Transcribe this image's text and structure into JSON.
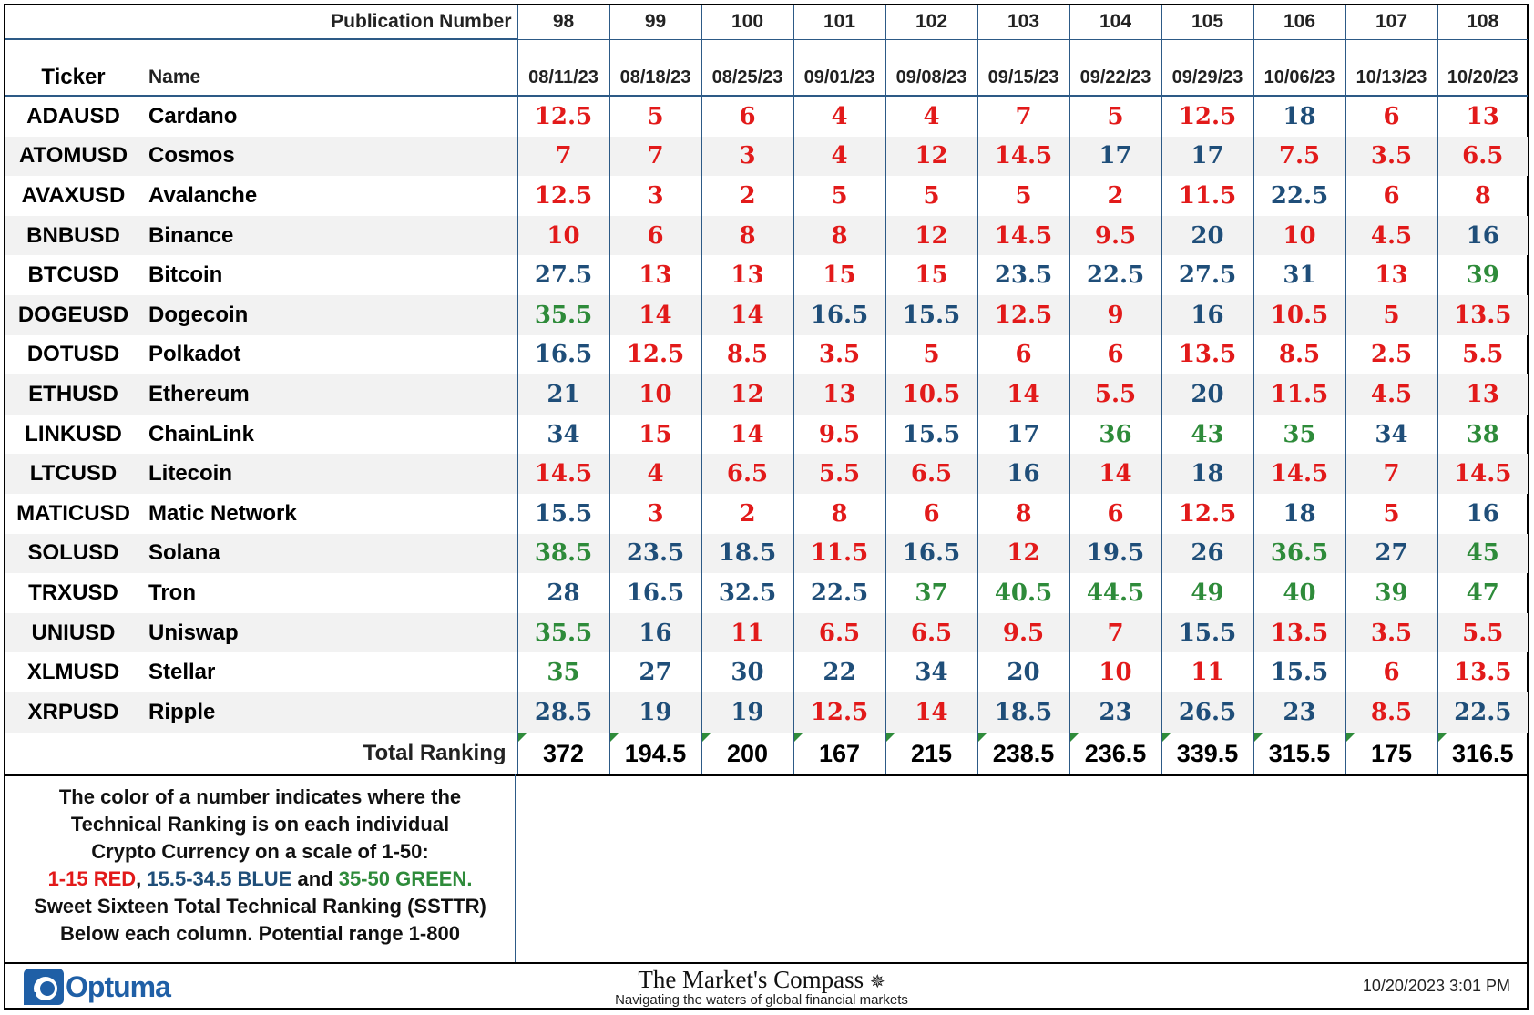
{
  "chart_data": {
    "type": "table",
    "header_label": "Publication Number",
    "column_headers": {
      "ticker": "Ticker",
      "name": "Name"
    },
    "publication_numbers": [
      "98",
      "99",
      "100",
      "101",
      "102",
      "103",
      "104",
      "105",
      "106",
      "107",
      "108"
    ],
    "dates": [
      "08/11/23",
      "08/18/23",
      "08/25/23",
      "09/01/23",
      "09/08/23",
      "09/15/23",
      "09/22/23",
      "09/29/23",
      "10/06/23",
      "10/13/23",
      "10/20/23"
    ],
    "rows": [
      {
        "ticker": "ADAUSD",
        "name": "Cardano",
        "values": [
          "12.5",
          "5",
          "6",
          "4",
          "4",
          "7",
          "5",
          "12.5",
          "18",
          "6",
          "13"
        ]
      },
      {
        "ticker": "ATOMUSD",
        "name": "Cosmos",
        "values": [
          "7",
          "7",
          "3",
          "4",
          "12",
          "14.5",
          "17",
          "17",
          "7.5",
          "3.5",
          "6.5"
        ]
      },
      {
        "ticker": "AVAXUSD",
        "name": "Avalanche",
        "values": [
          "12.5",
          "3",
          "2",
          "5",
          "5",
          "5",
          "2",
          "11.5",
          "22.5",
          "6",
          "8"
        ]
      },
      {
        "ticker": "BNBUSD",
        "name": "Binance",
        "values": [
          "10",
          "6",
          "8",
          "8",
          "12",
          "14.5",
          "9.5",
          "20",
          "10",
          "4.5",
          "16"
        ]
      },
      {
        "ticker": "BTCUSD",
        "name": "Bitcoin",
        "values": [
          "27.5",
          "13",
          "13",
          "15",
          "15",
          "23.5",
          "22.5",
          "27.5",
          "31",
          "13",
          "39"
        ]
      },
      {
        "ticker": "DOGEUSD",
        "name": "Dogecoin",
        "values": [
          "35.5",
          "14",
          "14",
          "16.5",
          "15.5",
          "12.5",
          "9",
          "16",
          "10.5",
          "5",
          "13.5"
        ]
      },
      {
        "ticker": "DOTUSD",
        "name": "Polkadot",
        "values": [
          "16.5",
          "12.5",
          "8.5",
          "3.5",
          "5",
          "6",
          "6",
          "13.5",
          "8.5",
          "2.5",
          "5.5"
        ]
      },
      {
        "ticker": "ETHUSD",
        "name": "Ethereum",
        "values": [
          "21",
          "10",
          "12",
          "13",
          "10.5",
          "14",
          "5.5",
          "20",
          "11.5",
          "4.5",
          "13"
        ]
      },
      {
        "ticker": "LINKUSD",
        "name": "ChainLink",
        "values": [
          "34",
          "15",
          "14",
          "9.5",
          "15.5",
          "17",
          "36",
          "43",
          "35",
          "34",
          "38"
        ]
      },
      {
        "ticker": "LTCUSD",
        "name": "Litecoin",
        "values": [
          "14.5",
          "4",
          "6.5",
          "5.5",
          "6.5",
          "16",
          "14",
          "18",
          "14.5",
          "7",
          "14.5"
        ]
      },
      {
        "ticker": "MATICUSD",
        "name": "Matic Network",
        "values": [
          "15.5",
          "3",
          "2",
          "8",
          "6",
          "8",
          "6",
          "12.5",
          "18",
          "5",
          "16"
        ]
      },
      {
        "ticker": "SOLUSD",
        "name": "Solana",
        "values": [
          "38.5",
          "23.5",
          "18.5",
          "11.5",
          "16.5",
          "12",
          "19.5",
          "26",
          "36.5",
          "27",
          "45"
        ]
      },
      {
        "ticker": "TRXUSD",
        "name": "Tron",
        "values": [
          "28",
          "16.5",
          "32.5",
          "22.5",
          "37",
          "40.5",
          "44.5",
          "49",
          "40",
          "39",
          "47"
        ]
      },
      {
        "ticker": "UNIUSD",
        "name": "Uniswap",
        "values": [
          "35.5",
          "16",
          "11",
          "6.5",
          "6.5",
          "9.5",
          "7",
          "15.5",
          "13.5",
          "3.5",
          "5.5"
        ]
      },
      {
        "ticker": "XLMUSD",
        "name": "Stellar",
        "values": [
          "35",
          "27",
          "30",
          "22",
          "34",
          "20",
          "10",
          "11",
          "15.5",
          "6",
          "13.5"
        ]
      },
      {
        "ticker": "XRPUSD",
        "name": "Ripple",
        "values": [
          "28.5",
          "19",
          "19",
          "12.5",
          "14",
          "18.5",
          "23",
          "26.5",
          "23",
          "8.5",
          "22.5"
        ]
      }
    ],
    "total_label": "Total Ranking",
    "totals": [
      "372",
      "194.5",
      "200",
      "167",
      "215",
      "238.5",
      "236.5",
      "339.5",
      "315.5",
      "175",
      "316.5"
    ],
    "color_scale": [
      {
        "max": 15,
        "color": "#e21a1a"
      },
      {
        "max": 34.5,
        "color": "#1f4e79"
      },
      {
        "max": 50,
        "color": "#2e8b3a"
      }
    ]
  },
  "legend": {
    "line1": "The color of a number indicates where the",
    "line2": "Technical Ranking is on each individual",
    "line3": "Crypto Currency on a scale of 1-50:",
    "red_text": "1-15 RED",
    "sep1": ", ",
    "blue_text": "15.5-34.5 BLUE",
    "sep2": " and ",
    "green_text": "35-50 GREEN.",
    "line5": "Sweet Sixteen Total Technical Ranking (SSTTR)",
    "line6": "Below each column.   Potential range 1-800"
  },
  "footer": {
    "logo_text": "Optuma",
    "logo_icon": "optuma-logo-icon",
    "brand_title": "The Market's Compass",
    "brand_icon": "compass-rose-icon",
    "brand_subtitle": "Navigating the waters of global financial markets",
    "timestamp": "10/20/2023 3:01 PM"
  }
}
